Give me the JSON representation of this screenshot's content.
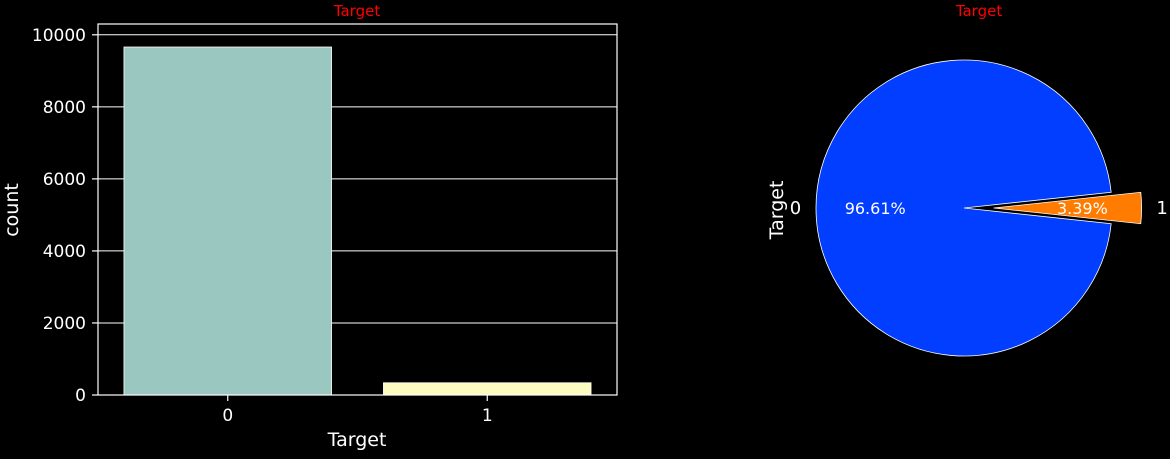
{
  "chart_data": [
    {
      "type": "bar",
      "title": "Target",
      "xlabel": "Target",
      "ylabel": "count",
      "categories": [
        "0",
        "1"
      ],
      "values": [
        9661,
        339
      ],
      "colors": [
        "#9ac8c0",
        "#fdfcc0"
      ],
      "ylim": [
        0,
        10300
      ],
      "yticks": [
        0,
        2000,
        4000,
        6000,
        8000,
        10000
      ],
      "ytick_labels": [
        "0",
        "2000",
        "4000",
        "6000",
        "8000",
        "10000"
      ],
      "grid": true
    },
    {
      "type": "pie",
      "title": "Target",
      "ylabel": "Target",
      "labels": [
        "0",
        "1"
      ],
      "values": [
        96.61,
        3.39
      ],
      "percent_labels": [
        "96.61%",
        "3.39%"
      ],
      "colors": [
        "#023eff",
        "#ff7c00"
      ],
      "explode": [
        0,
        0.2
      ]
    }
  ],
  "theme": {
    "background": "#000000",
    "foreground": "#ffffff",
    "title_color": "#ff0000"
  }
}
